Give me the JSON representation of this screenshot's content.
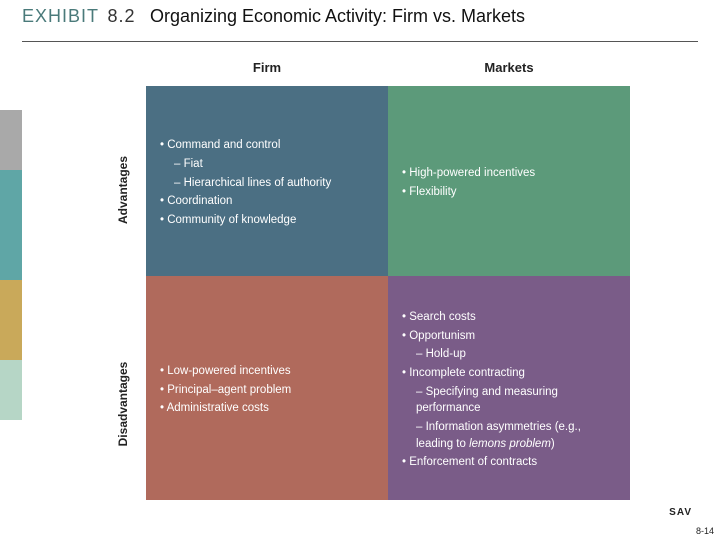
{
  "header": {
    "exhibit_label": "EXHIBIT",
    "exhibit_number": "8.2",
    "title": "Organizing Economic Activity: Firm vs. Markets"
  },
  "accents": {
    "colors": [
      "#a9a9a9",
      "#5fa6a6",
      "#c9a95a",
      "#b6d6c6"
    ]
  },
  "matrix": {
    "columns": [
      "Firm",
      "Markets"
    ],
    "rows": [
      "Advantages",
      "Disadvantages"
    ],
    "cells": {
      "firm_advantages": {
        "bg": "#4b6f83",
        "items": [
          {
            "text": "Command and control"
          },
          {
            "text": "Fiat",
            "level": "sub"
          },
          {
            "text": "Hierarchical lines of authority",
            "level": "sub"
          },
          {
            "text": "Coordination"
          },
          {
            "text": "Community of knowledge"
          }
        ]
      },
      "markets_advantages": {
        "bg": "#5c9a7a",
        "items": [
          {
            "text": "High-powered incentives"
          },
          {
            "text": "Flexibility"
          }
        ]
      },
      "firm_disadvantages": {
        "bg": "#b06a5c",
        "items": [
          {
            "text": "Low-powered incentives"
          },
          {
            "text": "Principal–agent problem"
          },
          {
            "text": "Administrative costs"
          }
        ]
      },
      "markets_disadvantages": {
        "bg": "#7a5c88",
        "items": [
          {
            "text": "Search costs"
          },
          {
            "text": "Opportunism"
          },
          {
            "text": "Hold-up",
            "level": "sub"
          },
          {
            "text": "Incomplete contracting"
          },
          {
            "text": "Specifying and measuring performance",
            "level": "sub"
          },
          {
            "text": "Information asymmetries (e.g., leading to lemons problem)",
            "level": "sub",
            "ital_words": [
              "lemons",
              "problem"
            ]
          },
          {
            "text": "Enforcement of contracts"
          }
        ]
      }
    }
  },
  "footer": {
    "sav": "SAV",
    "page": "8-14"
  }
}
